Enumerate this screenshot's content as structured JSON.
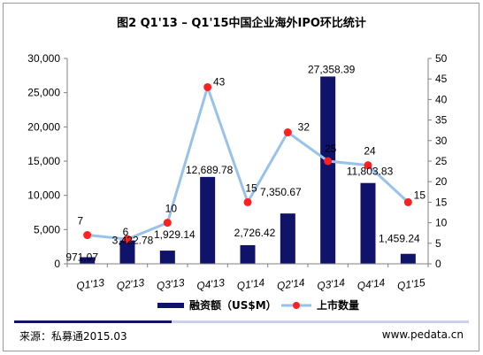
{
  "title": "图2 Q1'13 – Q1'15中国企业海外IPO环比统计",
  "chart_data": {
    "type": "bar+line",
    "categories": [
      "Q1'13",
      "Q2'13",
      "Q3'13",
      "Q4'13",
      "Q1'14",
      "Q2'14",
      "Q3'14",
      "Q4'14",
      "Q1'15"
    ],
    "series": [
      {
        "name": "融资额（US$M）",
        "type": "bar",
        "axis": "left",
        "color": "#10136a",
        "values": [
          971.07,
          3422.78,
          1929.14,
          12689.78,
          2726.42,
          7350.67,
          27358.39,
          11803.83,
          1459.24
        ],
        "labels": [
          "971.07",
          "3,422.78",
          "1,929.14",
          "12,689.78",
          "2,726.42",
          "7,350.67",
          "27,358.39",
          "11,803.83",
          "1,459.24"
        ]
      },
      {
        "name": "上市数量",
        "type": "line",
        "axis": "right",
        "line_color": "#99c2ea",
        "marker_color": "#ff2020",
        "values": [
          7,
          6,
          10,
          43,
          15,
          32,
          25,
          24,
          15
        ],
        "labels": [
          "7",
          "6",
          "10",
          "43",
          "15",
          "32",
          "25",
          "24",
          "15"
        ]
      }
    ],
    "y_left": {
      "min": 0,
      "max": 30000,
      "step": 5000,
      "tick_labels": [
        "0",
        "5,000",
        "10,000",
        "15,000",
        "20,000",
        "25,000",
        "30,000"
      ]
    },
    "y_right": {
      "min": 0,
      "max": 50,
      "step": 5,
      "tick_labels": [
        "0",
        "5",
        "10",
        "15",
        "20",
        "25",
        "30",
        "35",
        "40",
        "45",
        "50"
      ]
    },
    "grid": false,
    "legend_position": "bottom"
  },
  "legend": {
    "bar_label": "融资额（US$M）",
    "line_label": "上市数量"
  },
  "footer": {
    "source": "来源：私募通2015.03",
    "website": "www.pedata.cn"
  },
  "colors": {
    "bar": "#10136a",
    "line": "#99c2ea",
    "marker": "#ff2020"
  }
}
